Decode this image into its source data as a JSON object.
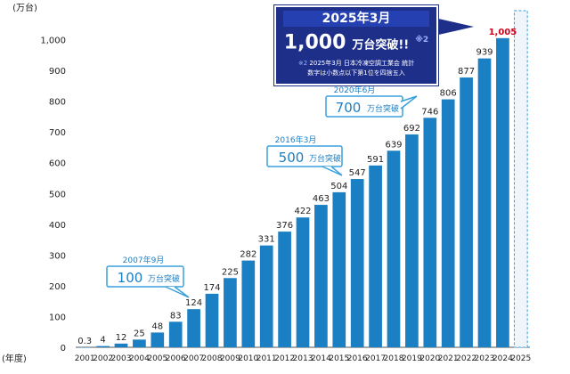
{
  "chart_data": {
    "type": "bar",
    "y_unit_label": "(万台)",
    "x_unit_label": "(年度)",
    "categories": [
      "2001",
      "2002",
      "2003",
      "2004",
      "2005",
      "2006",
      "2007",
      "2008",
      "2009",
      "2010",
      "2011",
      "2012",
      "2013",
      "2014",
      "2015",
      "2016",
      "2017",
      "2018",
      "2019",
      "2020",
      "2021",
      "2022",
      "2023",
      "2024",
      "2025"
    ],
    "values": [
      0.3,
      4,
      12,
      25,
      48,
      83,
      124,
      174,
      225,
      282,
      331,
      376,
      422,
      463,
      504,
      547,
      591,
      639,
      692,
      746,
      806,
      877,
      939,
      1005,
      null
    ],
    "value_labels": [
      "0.3",
      "4",
      "12",
      "25",
      "48",
      "83",
      "124",
      "174",
      "225",
      "282",
      "331",
      "376",
      "422",
      "463",
      "504",
      "547",
      "591",
      "639",
      "692",
      "746",
      "806",
      "877",
      "939",
      "1,005",
      ""
    ],
    "highlight_index": 23,
    "placeholder_category": "2025",
    "ylim": [
      0,
      1100
    ],
    "yticks": [
      0,
      100,
      200,
      300,
      400,
      500,
      600,
      700,
      800,
      900,
      1000
    ],
    "ytick_labels": [
      "0",
      "100",
      "200",
      "300",
      "400",
      "500",
      "600",
      "700",
      "800",
      "900",
      "1,000"
    ],
    "grid": false,
    "colors": {
      "bar": "#1b7fc4",
      "highlight_label": "#d0021b",
      "callout": "#3aa0dc",
      "banner": "#1e2f8a"
    },
    "annotations": [
      {
        "date": "2007年9月",
        "value": "100",
        "unit": "万台突破",
        "category": "2007",
        "y": 100
      },
      {
        "date": "2016年3月",
        "value": "500",
        "unit": "万台突破",
        "category": "2016",
        "y": 500
      },
      {
        "date": "2020年6月",
        "value": "700",
        "unit": "万台突破",
        "category": "2020",
        "y": 700
      }
    ],
    "banner": {
      "title": "2025年3月",
      "value": "1,000",
      "unit": "万台突破!!",
      "note_mark": "※2",
      "source_line1": "2025年3月 日本冷凍空調工業会 統計",
      "source_line2": "数字は小数点以下第1位を四捨五入"
    }
  }
}
